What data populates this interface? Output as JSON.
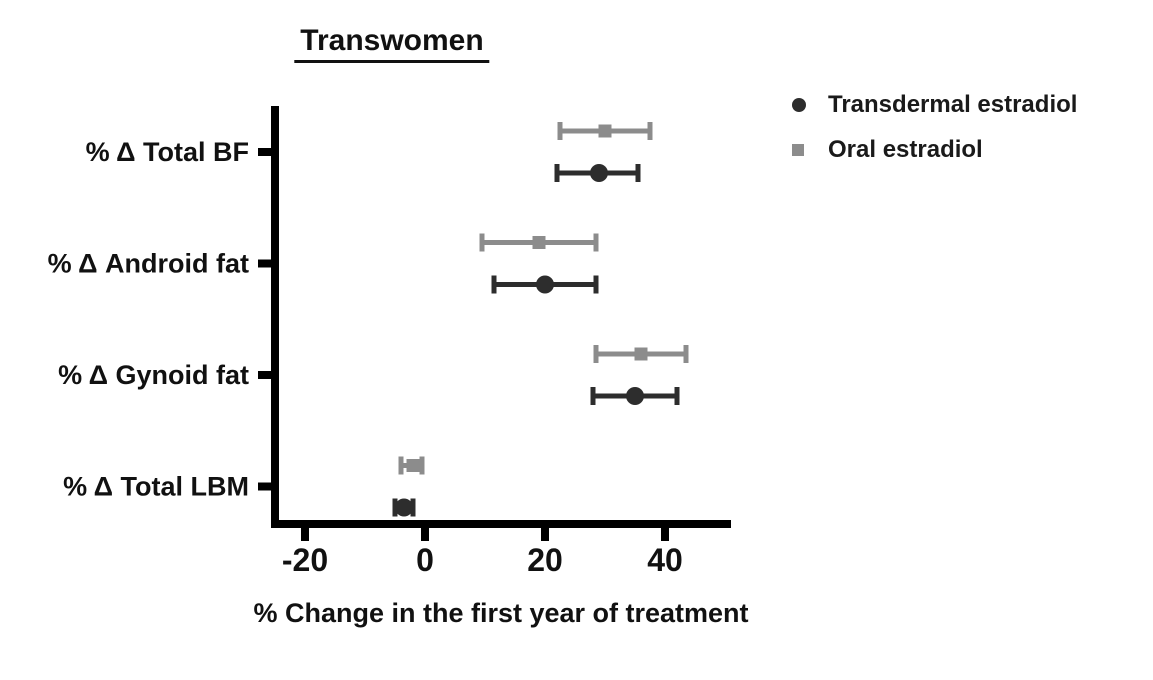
{
  "title": "Transwomen",
  "legend": {
    "items": [
      {
        "label": "Transdermal estradiol",
        "marker": "circle",
        "color": "#2d2d2d"
      },
      {
        "label": "Oral estradiol",
        "marker": "square",
        "color": "#8c8c8c"
      }
    ]
  },
  "colors": {
    "transdermal": "#2d2d2d",
    "oral": "#8c8c8c",
    "axis": "#000000",
    "text": "#111111"
  },
  "chart_data": {
    "type": "scatter",
    "variant": "horizontal point estimates with error bars (forest-style dot plot)",
    "title": "Transwomen",
    "categories": [
      "% Δ Total BF",
      "% Δ Android fat",
      "% Δ Gynoid fat",
      "% Δ Total LBM"
    ],
    "series": [
      {
        "name": "Transdermal estradiol",
        "marker": "circle",
        "color": "#2d2d2d",
        "values": [
          29,
          20,
          35,
          -3.5
        ],
        "ci_low": [
          22,
          11.5,
          28,
          -5
        ],
        "ci_high": [
          35.5,
          28.5,
          42,
          -2
        ]
      },
      {
        "name": "Oral estradiol",
        "marker": "square",
        "color": "#8c8c8c",
        "values": [
          30,
          19,
          36,
          -2
        ],
        "ci_low": [
          22.5,
          9.5,
          28.5,
          -4
        ],
        "ci_high": [
          37.5,
          28.5,
          43.5,
          -0.5
        ]
      }
    ],
    "xlabel": "% Change in the first year of treatment",
    "xticks": [
      -20,
      0,
      20,
      40
    ],
    "xtick_labels": [
      "-20",
      "0",
      "20",
      "40"
    ],
    "xlim": [
      -25,
      51
    ],
    "grid": false,
    "legend_position": "top-right"
  }
}
